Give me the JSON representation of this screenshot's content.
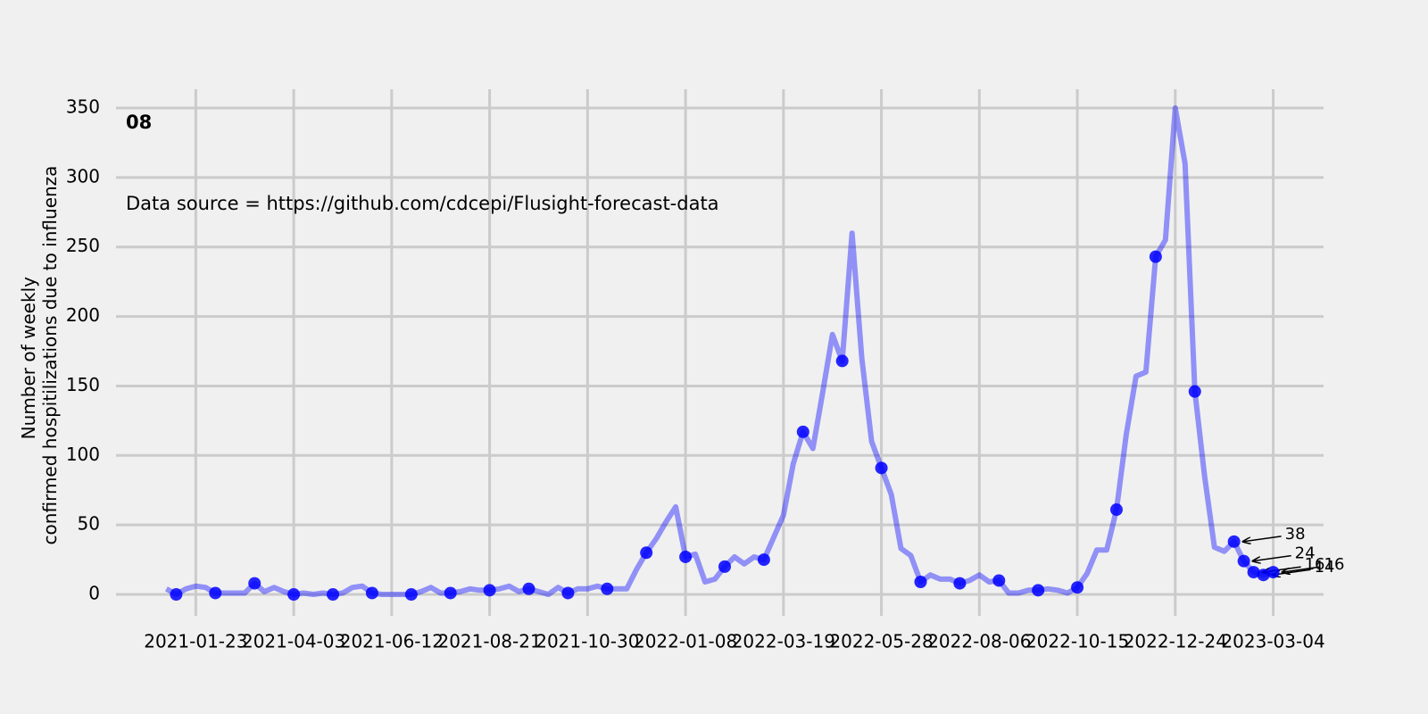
{
  "chart_data": {
    "type": "line",
    "title": "08",
    "note": "Data source = https://github.com/cdcepi/Flusight-forecast-data",
    "ylabel": [
      "Number of weekly",
      "confirmed hospitilizations due to influenza"
    ],
    "color": "#0000ff",
    "grid": true,
    "x": [
      "2021-01-02",
      "2021-01-09",
      "2021-01-16",
      "2021-01-23",
      "2021-01-30",
      "2021-02-06",
      "2021-02-13",
      "2021-02-20",
      "2021-02-27",
      "2021-03-06",
      "2021-03-13",
      "2021-03-20",
      "2021-03-27",
      "2021-04-03",
      "2021-04-10",
      "2021-04-17",
      "2021-04-24",
      "2021-05-01",
      "2021-05-08",
      "2021-05-15",
      "2021-05-22",
      "2021-05-29",
      "2021-06-05",
      "2021-06-12",
      "2021-06-19",
      "2021-06-26",
      "2021-07-03",
      "2021-07-10",
      "2021-07-17",
      "2021-07-24",
      "2021-07-31",
      "2021-08-07",
      "2021-08-14",
      "2021-08-21",
      "2021-08-28",
      "2021-09-04",
      "2021-09-11",
      "2021-09-18",
      "2021-09-25",
      "2021-10-02",
      "2021-10-09",
      "2021-10-16",
      "2021-10-23",
      "2021-10-30",
      "2021-11-06",
      "2021-11-13",
      "2021-11-20",
      "2021-11-27",
      "2021-12-04",
      "2021-12-11",
      "2021-12-18",
      "2021-12-25",
      "2022-01-01",
      "2022-01-08",
      "2022-01-15",
      "2022-01-22",
      "2022-01-29",
      "2022-02-05",
      "2022-02-12",
      "2022-02-19",
      "2022-02-26",
      "2022-03-05",
      "2022-03-12",
      "2022-03-19",
      "2022-03-26",
      "2022-04-02",
      "2022-04-09",
      "2022-04-16",
      "2022-04-23",
      "2022-04-30",
      "2022-05-07",
      "2022-05-14",
      "2022-05-21",
      "2022-05-28",
      "2022-06-04",
      "2022-06-11",
      "2022-06-18",
      "2022-06-25",
      "2022-07-02",
      "2022-07-09",
      "2022-07-16",
      "2022-07-23",
      "2022-07-30",
      "2022-08-06",
      "2022-08-13",
      "2022-08-20",
      "2022-08-27",
      "2022-09-03",
      "2022-09-10",
      "2022-09-17",
      "2022-09-24",
      "2022-10-01",
      "2022-10-08",
      "2022-10-15",
      "2022-10-22",
      "2022-10-29",
      "2022-11-05",
      "2022-11-12",
      "2022-11-19",
      "2022-11-26",
      "2022-12-03",
      "2022-12-10",
      "2022-12-17",
      "2022-12-24",
      "2022-12-31",
      "2023-01-07",
      "2023-01-14",
      "2023-01-21",
      "2023-01-28",
      "2023-02-04",
      "2023-02-11",
      "2023-02-18",
      "2023-02-25",
      "2023-03-04"
    ],
    "values": [
      4,
      0,
      4,
      6,
      5,
      1,
      1,
      1,
      1,
      8,
      2,
      5,
      2,
      0,
      1,
      0,
      1,
      0,
      1,
      5,
      6,
      1,
      0,
      0,
      0,
      0,
      2,
      5,
      1,
      1,
      2,
      4,
      3,
      3,
      4,
      6,
      2,
      4,
      2,
      0,
      5,
      1,
      4,
      4,
      6,
      4,
      4,
      4,
      18,
      30,
      40,
      52,
      63,
      27,
      29,
      9,
      11,
      20,
      27,
      22,
      27,
      25,
      41,
      57,
      94,
      117,
      105,
      145,
      187,
      168,
      260,
      170,
      110,
      91,
      72,
      33,
      28,
      9,
      14,
      11,
      11,
      8,
      10,
      14,
      9,
      10,
      1,
      1,
      3,
      3,
      4,
      3,
      1,
      5,
      15,
      32,
      32,
      61,
      115,
      157,
      160,
      243,
      255,
      350,
      310,
      146,
      85,
      34,
      31,
      38,
      24,
      16,
      14,
      16
    ],
    "xlim": [
      "2020-11-27",
      "2023-04-09"
    ],
    "xticks": [
      "2021-01-23",
      "2021-04-03",
      "2021-06-12",
      "2021-08-21",
      "2021-10-30",
      "2022-01-08",
      "2022-03-19",
      "2022-05-28",
      "2022-08-06",
      "2022-10-15",
      "2022-12-24",
      "2023-03-04"
    ],
    "ylim": [
      -15.4,
      363.5
    ],
    "yticks": [
      0,
      50,
      100,
      150,
      200,
      250,
      300,
      350
    ]
  }
}
